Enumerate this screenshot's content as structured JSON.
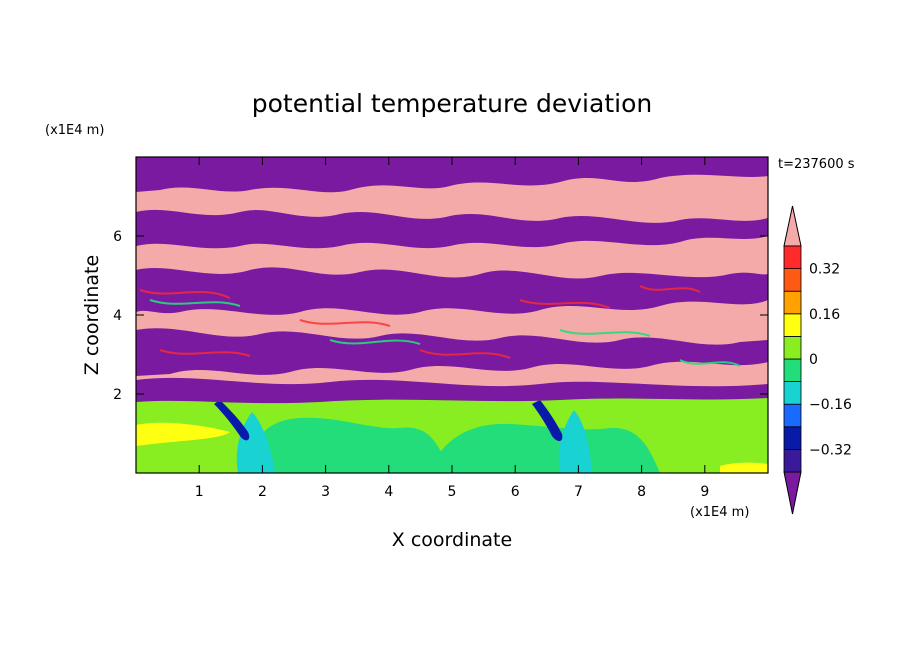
{
  "chart_data": {
    "type": "heatmap",
    "title": "potential temperature deviation",
    "xlabel": "X coordinate",
    "ylabel": "Z coordinate",
    "x_unit": "(x1E4 m)",
    "y_unit": "(x1E4 m)",
    "time_label": "t=237600  s",
    "xlim": [
      0,
      10
    ],
    "ylim": [
      0,
      8
    ],
    "x_ticks": [
      1,
      2,
      3,
      4,
      5,
      6,
      7,
      8,
      9
    ],
    "y_ticks": [
      2,
      4,
      6
    ],
    "grid": false,
    "legend_position": "right",
    "colorbar": {
      "levels": [
        -0.4,
        -0.32,
        -0.24,
        -0.16,
        -0.08,
        0,
        0.08,
        0.16,
        0.24,
        0.32,
        0.4
      ],
      "labels": [
        "0.32",
        "0.16",
        "0",
        "−0.16",
        "−0.32"
      ],
      "label_values": [
        0.32,
        0.16,
        0,
        -0.16,
        -0.32
      ],
      "colors": [
        "#7a1aa0",
        "#3a1a9a",
        "#0a1aa8",
        "#1a6aff",
        "#19d2d2",
        "#22dd7a",
        "#88ee22",
        "#ffff11",
        "#ffa200",
        "#ff5a14",
        "#ff2a2a",
        "#f5aaaa"
      ],
      "extend": "both"
    }
  }
}
